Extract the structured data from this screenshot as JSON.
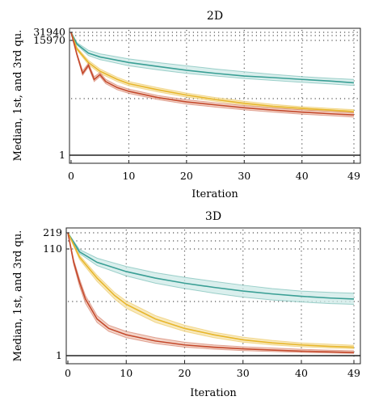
{
  "chart_data": [
    {
      "type": "line",
      "title": "2D",
      "xlabel": "Iteration",
      "ylabel": "Median, 1st, and 3rd qu.",
      "xlim": [
        0,
        49
      ],
      "x_ticks": [
        "0",
        "10",
        "20",
        "30",
        "40",
        "49"
      ],
      "y_ticks": [
        "31940",
        "15970",
        "1"
      ],
      "y_scale": "log",
      "grid": "dotted",
      "series": [
        {
          "color": "#3a9f95",
          "band_color": "#cde9e7",
          "x": [
            0,
            1,
            3,
            5,
            10,
            15,
            20,
            25,
            30,
            35,
            40,
            45,
            49
          ],
          "median": [
            31940,
            12000,
            5500,
            4000,
            2500,
            1800,
            1300,
            1000,
            800,
            700,
            600,
            520,
            450
          ],
          "q1": [
            31940,
            11000,
            4500,
            3200,
            1900,
            1350,
            1000,
            800,
            650,
            550,
            470,
            410,
            360
          ],
          "q3": [
            31940,
            13500,
            7000,
            5200,
            3400,
            2500,
            1900,
            1450,
            1150,
            920,
            760,
            660,
            600
          ]
        },
        {
          "color": "#e7b62b",
          "band_color": "#f6e2a8",
          "x": [
            0,
            1,
            3,
            5,
            8,
            10,
            15,
            20,
            25,
            30,
            35,
            40,
            45,
            49
          ],
          "median": [
            31940,
            8000,
            2500,
            1200,
            600,
            420,
            250,
            160,
            110,
            80,
            62,
            52,
            45,
            40
          ],
          "q1": [
            31940,
            7200,
            2100,
            1000,
            500,
            350,
            210,
            135,
            95,
            70,
            55,
            46,
            40,
            36
          ],
          "q3": [
            31940,
            9000,
            3000,
            1450,
            720,
            500,
            300,
            190,
            130,
            95,
            73,
            60,
            52,
            47
          ]
        },
        {
          "color": "#c4492c",
          "band_color": "#efc5b6",
          "x": [
            0,
            1,
            2,
            3,
            4,
            5,
            6,
            8,
            10,
            15,
            20,
            25,
            30,
            35,
            40,
            45,
            49
          ],
          "median": [
            31940,
            5000,
            1000,
            2000,
            600,
            900,
            500,
            300,
            220,
            130,
            90,
            70,
            55,
            45,
            38,
            33,
            30
          ],
          "q1": [
            31940,
            4500,
            850,
            1700,
            500,
            760,
            420,
            250,
            185,
            110,
            75,
            58,
            46,
            38,
            32,
            28,
            25
          ],
          "q3": [
            31940,
            5600,
            1250,
            2350,
            750,
            1080,
            600,
            360,
            265,
            155,
            108,
            84,
            66,
            54,
            46,
            40,
            36
          ]
        }
      ],
      "reference_lines": [
        1
      ]
    },
    {
      "type": "line",
      "title": "3D",
      "xlabel": "Iteration",
      "ylabel": "Median, 1st, and 3rd qu.",
      "xlim": [
        0,
        49
      ],
      "x_ticks": [
        "0",
        "10",
        "20",
        "30",
        "40",
        "49"
      ],
      "y_ticks": [
        "219",
        "110",
        "1"
      ],
      "y_scale": "log",
      "grid": "dotted",
      "series": [
        {
          "color": "#3a9f95",
          "band_color": "#cde9e7",
          "x": [
            0,
            2,
            5,
            10,
            15,
            20,
            25,
            30,
            35,
            40,
            45,
            49
          ],
          "median": [
            219,
            95,
            60,
            40,
            30,
            24,
            20,
            17,
            15,
            13.5,
            12.5,
            12
          ],
          "q1": [
            219,
            88,
            52,
            33,
            24,
            19,
            15.5,
            13,
            11.5,
            10.5,
            9.8,
            9.5
          ],
          "q3": [
            219,
            105,
            72,
            50,
            38,
            31,
            26,
            22,
            19,
            17,
            16,
            15.5
          ]
        },
        {
          "color": "#e7b62b",
          "band_color": "#f6e2a8",
          "x": [
            0,
            2,
            5,
            8,
            10,
            15,
            20,
            25,
            30,
            35,
            40,
            45,
            49
          ],
          "median": [
            219,
            75,
            30,
            14,
            9.5,
            5,
            3.3,
            2.5,
            2,
            1.75,
            1.6,
            1.5,
            1.45
          ],
          "q1": [
            219,
            68,
            26,
            12,
            8,
            4.3,
            2.9,
            2.2,
            1.8,
            1.6,
            1.48,
            1.4,
            1.35
          ],
          "q3": [
            219,
            82,
            34,
            16,
            11,
            5.8,
            3.8,
            2.8,
            2.25,
            1.95,
            1.75,
            1.65,
            1.58
          ]
        },
        {
          "color": "#c4492c",
          "band_color": "#efc5b6",
          "x": [
            0,
            1,
            2,
            3,
            5,
            7,
            10,
            15,
            20,
            25,
            30,
            35,
            40,
            45,
            49
          ],
          "median": [
            219,
            60,
            25,
            12,
            5,
            3.3,
            2.5,
            1.9,
            1.6,
            1.45,
            1.35,
            1.28,
            1.22,
            1.18,
            1.15
          ],
          "q1": [
            219,
            54,
            21,
            10,
            4.3,
            2.9,
            2.2,
            1.7,
            1.45,
            1.33,
            1.25,
            1.2,
            1.15,
            1.12,
            1.1
          ],
          "q3": [
            219,
            67,
            29,
            14,
            5.8,
            3.8,
            2.9,
            2.2,
            1.8,
            1.6,
            1.48,
            1.4,
            1.32,
            1.27,
            1.24
          ]
        }
      ],
      "reference_lines": [
        1
      ]
    }
  ]
}
